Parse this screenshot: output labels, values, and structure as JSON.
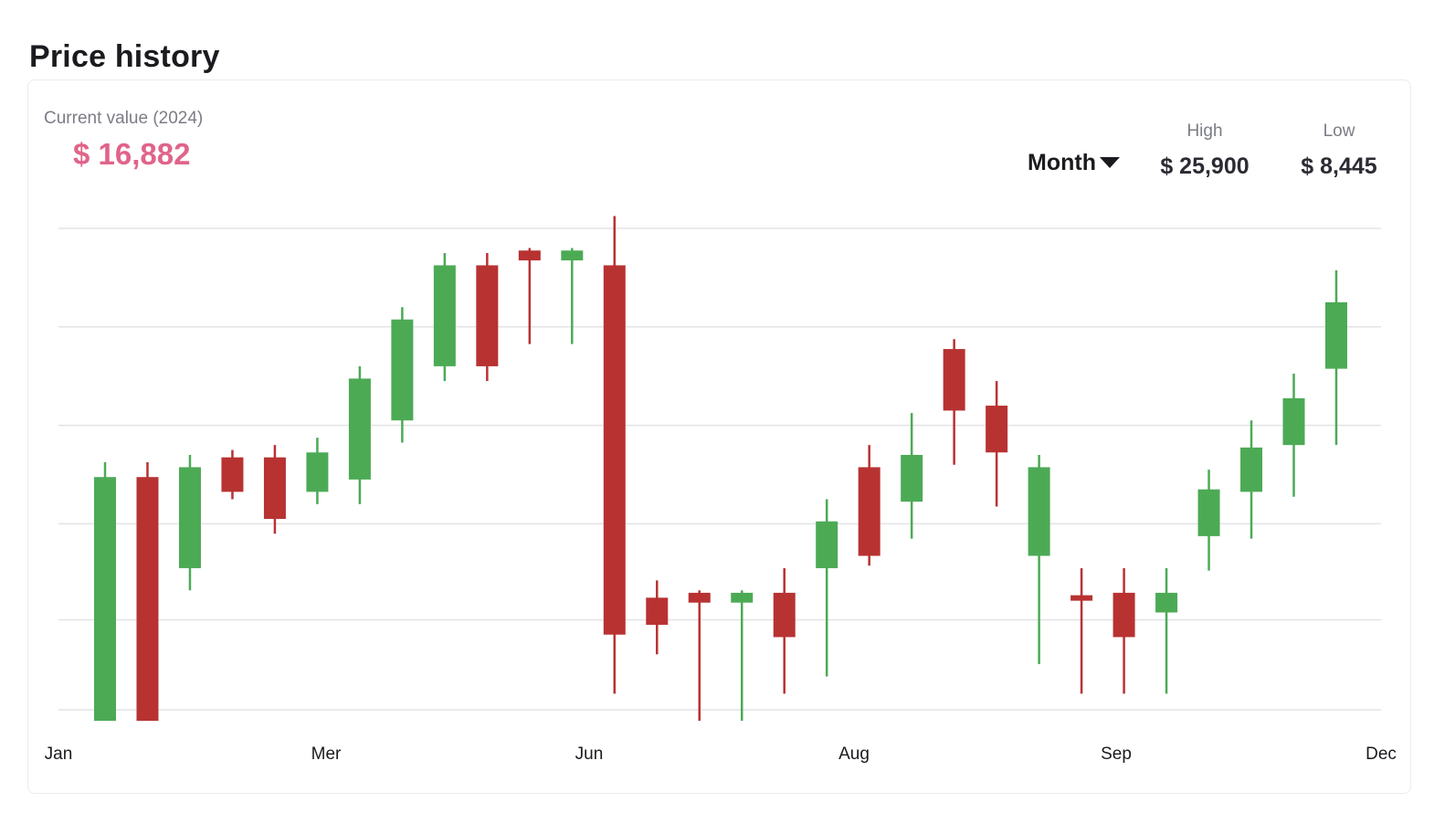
{
  "page": {
    "title": "Price history"
  },
  "summary": {
    "current_label": "Current value (2024)",
    "current_value": "$ 16,882",
    "period": "Month",
    "high_label": "High",
    "high_value": "$ 25,900",
    "low_label": "Low",
    "low_value": "$ 8,445"
  },
  "colors": {
    "up": "#4caa55",
    "down": "#b83232",
    "grid": "#e3e3e8",
    "accent": "#e0648a"
  },
  "chart_data": {
    "type": "candlestick",
    "x_tick_labels": [
      "Jan",
      "Mer",
      "Jun",
      "Aug",
      "Sep",
      "Dec"
    ],
    "ylim": [
      7000,
      28000
    ],
    "grid": true,
    "legend": "none",
    "candles": [
      {
        "open": 8000,
        "close": 17900,
        "high": 18500,
        "low": 8000
      },
      {
        "open": 17900,
        "close": 8000,
        "high": 18500,
        "low": 8000
      },
      {
        "open": 14200,
        "close": 18300,
        "high": 18800,
        "low": 13300
      },
      {
        "open": 18700,
        "close": 17300,
        "high": 19000,
        "low": 17000
      },
      {
        "open": 18700,
        "close": 16200,
        "high": 19200,
        "low": 15600
      },
      {
        "open": 17300,
        "close": 18900,
        "high": 19500,
        "low": 16800
      },
      {
        "open": 17800,
        "close": 21900,
        "high": 22400,
        "low": 16800
      },
      {
        "open": 20200,
        "close": 24300,
        "high": 24800,
        "low": 19300
      },
      {
        "open": 22400,
        "close": 26500,
        "high": 27000,
        "low": 21800
      },
      {
        "open": 26500,
        "close": 22400,
        "high": 27000,
        "low": 21800
      },
      {
        "open": 27100,
        "close": 26700,
        "high": 27200,
        "low": 23300
      },
      {
        "open": 26700,
        "close": 27100,
        "high": 27200,
        "low": 23300
      },
      {
        "open": 26500,
        "close": 11500,
        "high": 28500,
        "low": 9100
      },
      {
        "open": 13000,
        "close": 11900,
        "high": 13700,
        "low": 10700
      },
      {
        "open": 13200,
        "close": 12800,
        "high": 13300,
        "low": 8000
      },
      {
        "open": 12800,
        "close": 13200,
        "high": 13300,
        "low": 8000
      },
      {
        "open": 13200,
        "close": 11400,
        "high": 14200,
        "low": 9100
      },
      {
        "open": 14200,
        "close": 16100,
        "high": 17000,
        "low": 9800
      },
      {
        "open": 18300,
        "close": 14700,
        "high": 19200,
        "low": 14300
      },
      {
        "open": 16900,
        "close": 18800,
        "high": 20500,
        "low": 15400
      },
      {
        "open": 23100,
        "close": 20600,
        "high": 23500,
        "low": 18400
      },
      {
        "open": 20800,
        "close": 18900,
        "high": 21800,
        "low": 16700
      },
      {
        "open": 14700,
        "close": 18300,
        "high": 18800,
        "low": 10300
      },
      {
        "open": 13100,
        "close": 12900,
        "high": 14200,
        "low": 9100
      },
      {
        "open": 13200,
        "close": 11400,
        "high": 14200,
        "low": 9100
      },
      {
        "open": 12400,
        "close": 13200,
        "high": 14200,
        "low": 9100
      },
      {
        "open": 15500,
        "close": 17400,
        "high": 18200,
        "low": 14100
      },
      {
        "open": 17300,
        "close": 19100,
        "high": 20200,
        "low": 15400
      },
      {
        "open": 19200,
        "close": 21100,
        "high": 22100,
        "low": 17100
      },
      {
        "open": 22300,
        "close": 25000,
        "high": 26300,
        "low": 19200
      }
    ]
  }
}
